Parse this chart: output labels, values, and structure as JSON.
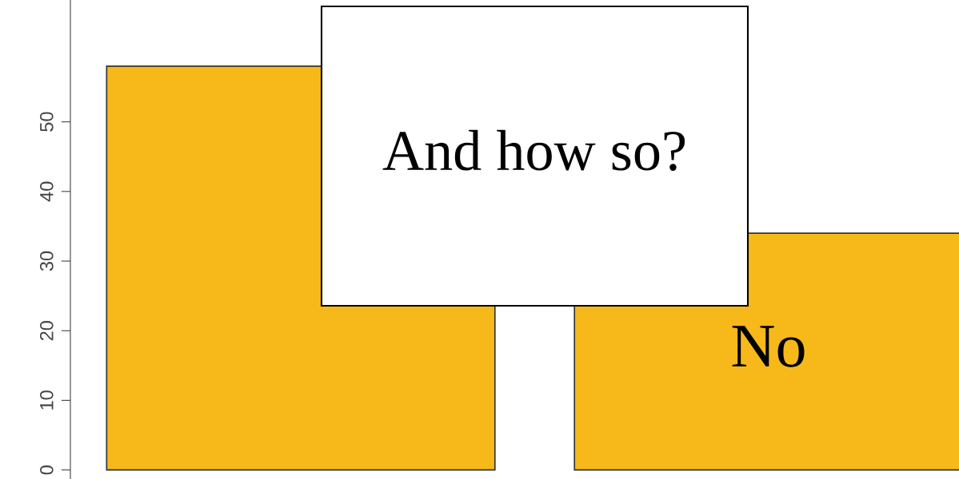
{
  "chart_data": {
    "type": "bar",
    "categories": [
      null,
      "No"
    ],
    "values": [
      58,
      34
    ],
    "color": "#f6b919",
    "ylim": [
      -1.3,
      67.5
    ],
    "yticks": [
      0,
      10,
      20,
      30,
      40,
      50
    ],
    "tick_labels": "y",
    "grid": false,
    "annotations": [
      "And how so?"
    ]
  }
}
